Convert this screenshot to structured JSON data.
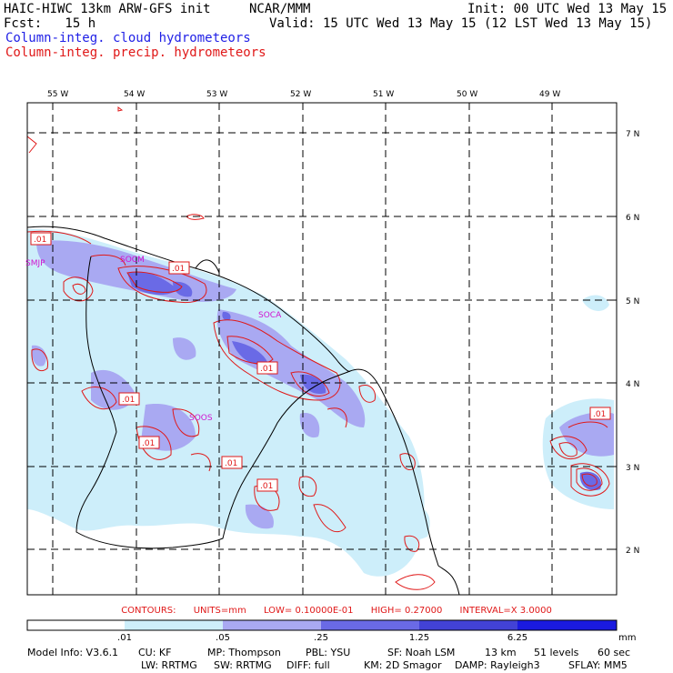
{
  "header": {
    "model_title": "HAIC-HIWC 13km ARW-GFS init",
    "org": "NCAR/MMM",
    "init": "Init: 00 UTC Wed 13 May 15",
    "fcst": "Fcst:   15 h",
    "valid": "Valid: 15 UTC Wed 13 May 15 (12 LST Wed 13 May 15)",
    "field_cloud": "Column-integ. cloud hydrometeors",
    "field_precip": "Column-integ. precip. hydrometeors"
  },
  "map": {
    "lon_labels": [
      "55 W",
      "54 W",
      "53 W",
      "52 W",
      "51 W",
      "50 W",
      "49 W"
    ],
    "lat_labels": [
      "7 N",
      "6 N",
      "5 N",
      "4 N",
      "3 N",
      "2 N"
    ],
    "station_labels": [
      "SMJP",
      "SOCM",
      "SOCA",
      "SOOS"
    ],
    "contour_labels": [
      ".01",
      ".01",
      ".01",
      ".01",
      ".01",
      ".01",
      ".01",
      ".01"
    ],
    "colors": {
      "cloud_shade_1": "#cdeefa",
      "cloud_shade_2": "#a9a9f2",
      "cloud_shade_3": "#6a6ae6",
      "cloud_shade_4": "#4242d6",
      "cloud_shade_5": "#1a1ae0",
      "precip_contour": "#e01818",
      "coast": "#000000",
      "station": "#d014d0"
    }
  },
  "contours_info": {
    "label": "CONTOURS:",
    "units": "UNITS=mm",
    "low": "LOW= 0.10000E-01",
    "high": "HIGH= 0.27000",
    "interval": "INTERVAL=X  3.0000"
  },
  "colorbar": {
    "labels": [
      ".01",
      ".05",
      ".25",
      "1.25",
      "6.25"
    ],
    "unit": "mm",
    "colors": [
      "#ffffff",
      "#cdeefa",
      "#a9a9f2",
      "#6a6ae6",
      "#4242d6",
      "#1a1ae0"
    ]
  },
  "footer": {
    "line1": [
      "Model Info: V3.6.1",
      "CU: KF",
      "MP: Thompson",
      "PBL: YSU",
      "SF: Noah LSM",
      "13 km",
      "51 levels",
      "60 sec"
    ],
    "line2": [
      "LW: RRTMG",
      "SW: RRTMG",
      "DIFF: full",
      "KM: 2D Smagor",
      "DAMP: Rayleigh3",
      "SFLAY: MM5"
    ]
  }
}
